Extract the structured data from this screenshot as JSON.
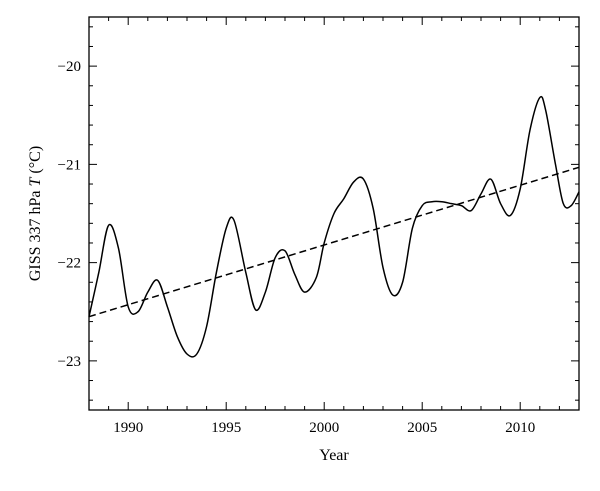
{
  "chart_data": {
    "type": "line",
    "xlabel": "Year",
    "ylabel": "GISS 337 hPa T (°C)",
    "xlim": [
      1988,
      2013
    ],
    "ylim": [
      -23.5,
      -19.5
    ],
    "xticks": [
      1990,
      1995,
      2000,
      2005,
      2010
    ],
    "yticks": [
      -23,
      -22,
      -21,
      -20
    ],
    "grid": false,
    "series": [
      {
        "style": "solid",
        "x": [
          1988.0,
          1988.5,
          1989.0,
          1989.5,
          1990.0,
          1990.5,
          1991.0,
          1991.5,
          1992.0,
          1992.5,
          1993.0,
          1993.5,
          1994.0,
          1994.5,
          1995.0,
          1995.4,
          1996.0,
          1996.5,
          1997.0,
          1997.5,
          1998.0,
          1998.5,
          1999.0,
          1999.6,
          2000.0,
          2000.5,
          2001.0,
          2001.5,
          2002.0,
          2002.5,
          2003.0,
          2003.5,
          2004.0,
          2004.5,
          2005.0,
          2005.5,
          2006.0,
          2006.5,
          2007.0,
          2007.5,
          2008.0,
          2008.5,
          2009.0,
          2009.5,
          2010.0,
          2010.5,
          2011.0,
          2011.3,
          2011.8,
          2012.2,
          2012.6,
          2013.0
        ],
        "y": [
          -22.55,
          -22.1,
          -21.62,
          -21.85,
          -22.45,
          -22.5,
          -22.3,
          -22.18,
          -22.45,
          -22.75,
          -22.93,
          -22.93,
          -22.65,
          -22.1,
          -21.65,
          -21.57,
          -22.1,
          -22.48,
          -22.3,
          -21.95,
          -21.88,
          -22.12,
          -22.3,
          -22.15,
          -21.8,
          -21.5,
          -21.35,
          -21.18,
          -21.15,
          -21.45,
          -22.05,
          -22.33,
          -22.2,
          -21.65,
          -21.42,
          -21.38,
          -21.38,
          -21.4,
          -21.42,
          -21.47,
          -21.3,
          -21.15,
          -21.4,
          -21.52,
          -21.25,
          -20.65,
          -20.32,
          -20.45,
          -21.0,
          -21.4,
          -21.42,
          -21.28
        ]
      },
      {
        "style": "dashed",
        "x": [
          1988,
          2013
        ],
        "y": [
          -22.55,
          -21.03
        ]
      }
    ]
  }
}
